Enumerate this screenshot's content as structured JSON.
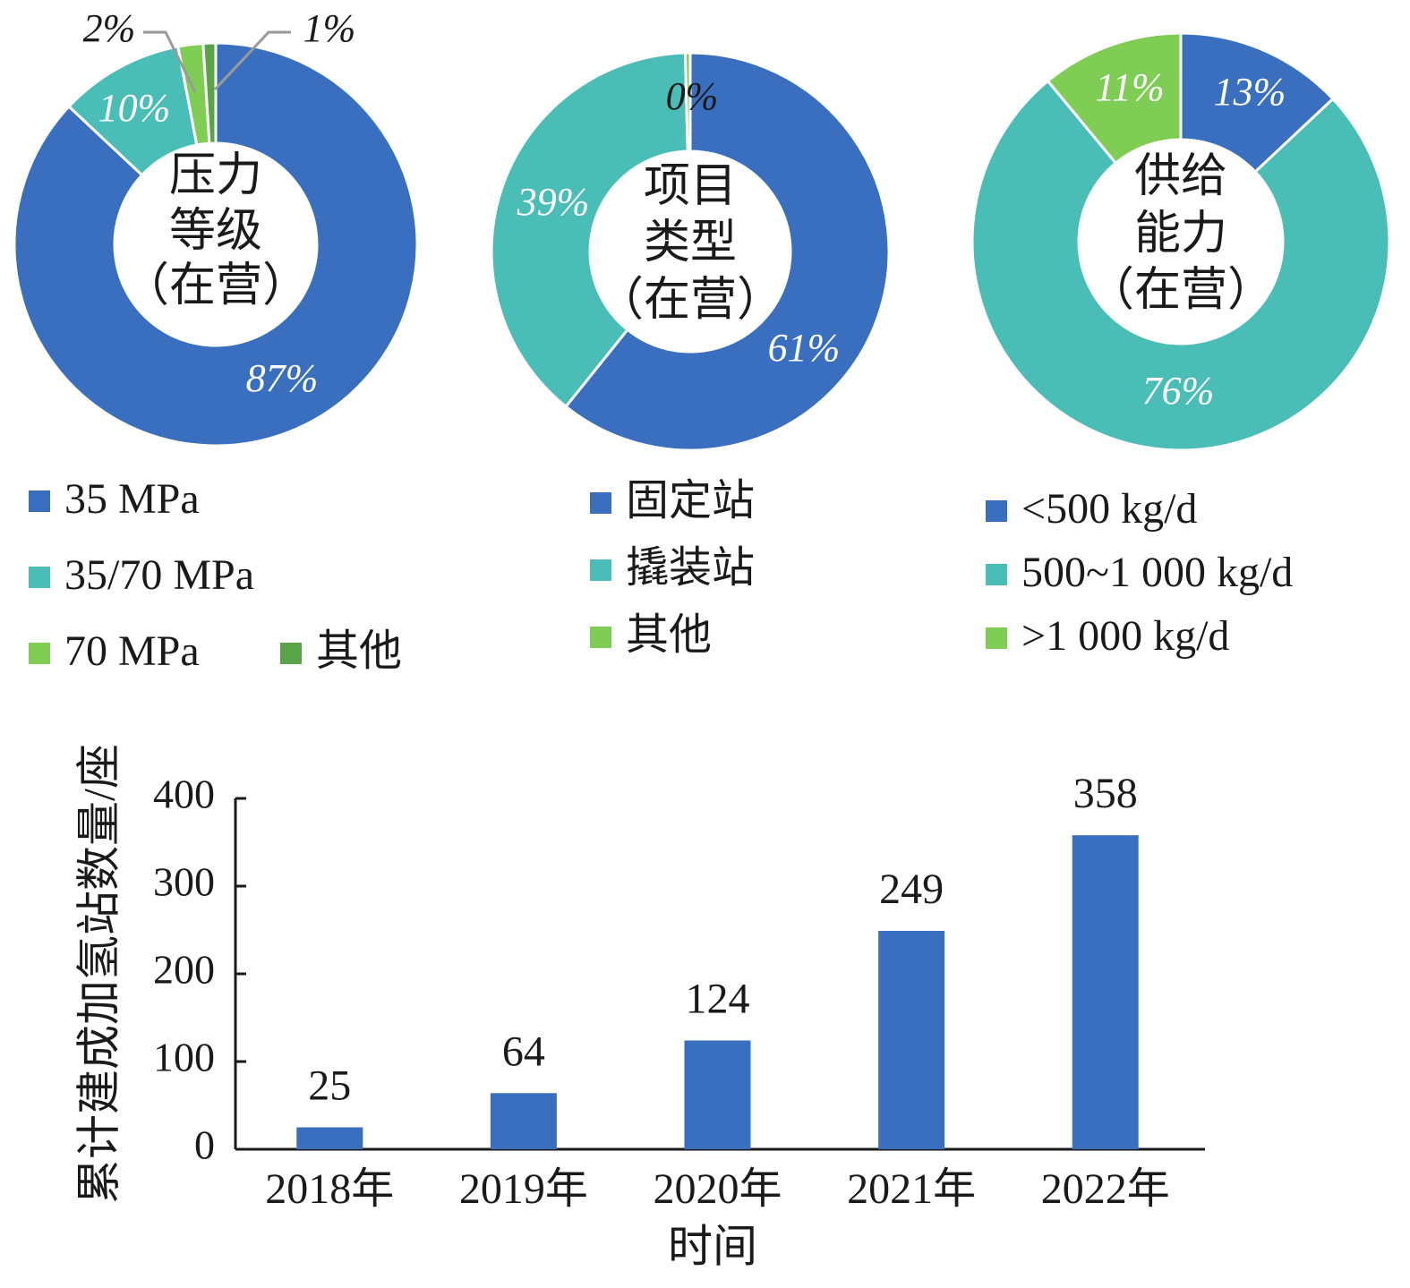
{
  "colors": {
    "blue": "#3a6fbf",
    "teal": "#4bbdb7",
    "green": "#7fcd55",
    "darkgreen": "#5aa348",
    "leader": "#9a9a9a"
  },
  "chart_data": [
    {
      "type": "pie",
      "variant": "donut",
      "center_label": [
        "压力",
        "等级",
        "（在营）"
      ],
      "slices": [
        {
          "name": "35 MPa",
          "value": 87,
          "label": "87%",
          "color": "#3a6fbf"
        },
        {
          "name": "35/70 MPa",
          "value": 10,
          "label": "10%",
          "color": "#4bbdb7"
        },
        {
          "name": "70 MPa",
          "value": 2,
          "label": "2%",
          "color": "#7fcd55"
        },
        {
          "name": "其他",
          "value": 1,
          "label": "1%",
          "color": "#5aa348"
        }
      ]
    },
    {
      "type": "pie",
      "variant": "donut",
      "center_label": [
        "项目",
        "类型",
        "（在营）"
      ],
      "slices": [
        {
          "name": "固定站",
          "value": 61,
          "label": "61%",
          "color": "#3a6fbf"
        },
        {
          "name": "撬装站",
          "value": 39,
          "label": "39%",
          "color": "#4bbdb7"
        },
        {
          "name": "其他",
          "value": 0.4,
          "label": "0%",
          "color": "#7fcd55"
        }
      ]
    },
    {
      "type": "pie",
      "variant": "donut",
      "center_label": [
        "供给",
        "能力",
        "（在营）"
      ],
      "slices": [
        {
          "name": "<500 kg/d",
          "value": 13,
          "label": "13%",
          "color": "#3a6fbf"
        },
        {
          "name": "500~1 000 kg/d",
          "value": 76,
          "label": "76%",
          "color": "#4bbdb7"
        },
        {
          "name": ">1 000 kg/d",
          "value": 11,
          "label": "11%",
          "color": "#7fcd55"
        }
      ]
    },
    {
      "type": "bar",
      "categories": [
        "2018年",
        "2019年",
        "2020年",
        "2021年",
        "2022年"
      ],
      "values": [
        25,
        64,
        124,
        249,
        358
      ],
      "data_labels": [
        "25",
        "64",
        "124",
        "249",
        "358"
      ],
      "xlabel": "时间",
      "ylabel": "累计建成加氢站数量/座",
      "ylim": [
        0,
        400
      ],
      "yticks": [
        "0",
        "100",
        "200",
        "300",
        "400"
      ],
      "color": "#3a6fbf",
      "grid": false
    }
  ]
}
